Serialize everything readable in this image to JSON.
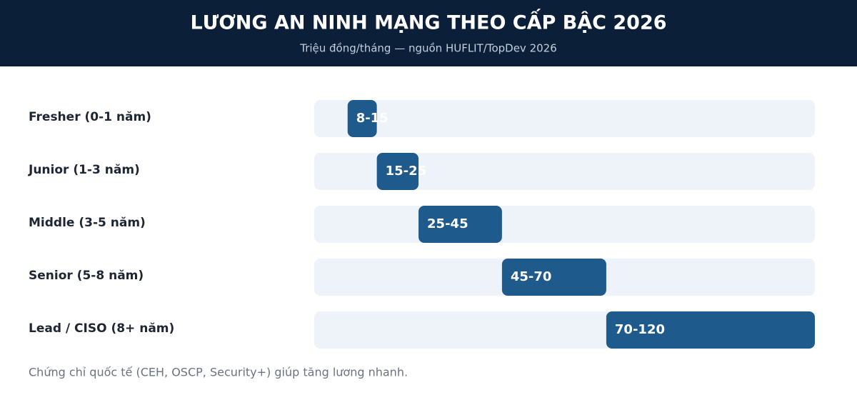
{
  "chart_data": {
    "type": "range-bar",
    "title": "LƯƠNG AN NINH MẠNG THEO CẤP BẬC 2026",
    "subtitle": "Triệu đồng/tháng — nguồn HUFLIT/TopDev 2026",
    "categories": [
      "Fresher (0-1 năm)",
      "Junior (1-3 năm)",
      "Middle (3-5 năm)",
      "Senior (5-8 năm)",
      "Lead / CISO (8+ năm)"
    ],
    "low": [
      8,
      15,
      25,
      45,
      70
    ],
    "high": [
      15,
      25,
      45,
      70,
      120
    ],
    "value_labels": [
      "8-15",
      "15-25",
      "25-45",
      "45-70",
      "70-120"
    ],
    "color": "#1f5a8c",
    "track_color": "#eef3fa",
    "xlim": [
      0,
      120
    ],
    "note": "Chứng chỉ quốc tế (CEH, OSCP, Security+) giúp tăng lương nhanh."
  }
}
